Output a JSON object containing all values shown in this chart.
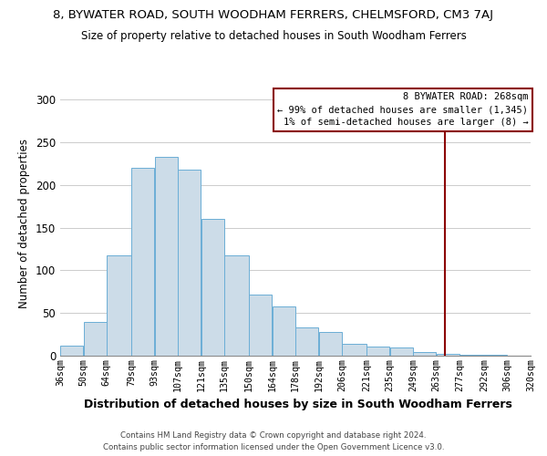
{
  "title": "8, BYWATER ROAD, SOUTH WOODHAM FERRERS, CHELMSFORD, CM3 7AJ",
  "subtitle": "Size of property relative to detached houses in South Woodham Ferrers",
  "xlabel": "Distribution of detached houses by size in South Woodham Ferrers",
  "ylabel": "Number of detached properties",
  "bin_labels": [
    "36sqm",
    "50sqm",
    "64sqm",
    "79sqm",
    "93sqm",
    "107sqm",
    "121sqm",
    "135sqm",
    "150sqm",
    "164sqm",
    "178sqm",
    "192sqm",
    "206sqm",
    "221sqm",
    "235sqm",
    "249sqm",
    "263sqm",
    "277sqm",
    "292sqm",
    "306sqm",
    "320sqm"
  ],
  "bar_heights": [
    12,
    40,
    118,
    220,
    233,
    218,
    160,
    118,
    72,
    58,
    33,
    28,
    14,
    11,
    10,
    4,
    2,
    1,
    1,
    0
  ],
  "bar_color": "#ccdce8",
  "bar_edge_color": "#6baed6",
  "vline_x_index": 16,
  "vline_color": "#8b0000",
  "ylim": [
    0,
    310
  ],
  "yticks": [
    0,
    50,
    100,
    150,
    200,
    250,
    300
  ],
  "legend_title": "8 BYWATER ROAD: 268sqm",
  "legend_line1": "← 99% of detached houses are smaller (1,345)",
  "legend_line2": "1% of semi-detached houses are larger (8) →",
  "footer_line1": "Contains HM Land Registry data © Crown copyright and database right 2024.",
  "footer_line2": "Contains public sector information licensed under the Open Government Licence v3.0.",
  "bin_edges": [
    36,
    50,
    64,
    79,
    93,
    107,
    121,
    135,
    150,
    164,
    178,
    192,
    206,
    221,
    235,
    249,
    263,
    277,
    292,
    306,
    320
  ]
}
